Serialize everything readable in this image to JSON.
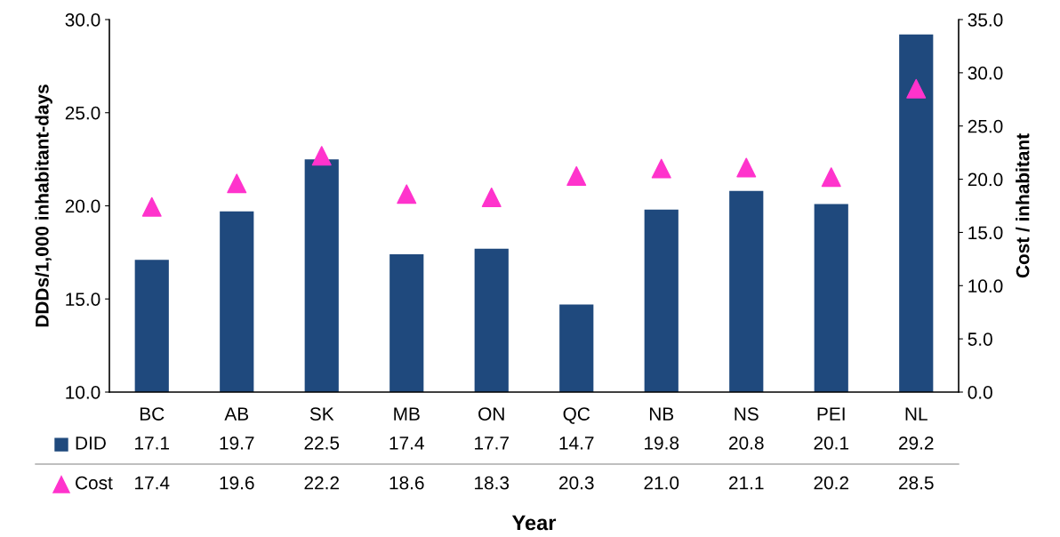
{
  "chart_data": {
    "type": "bar",
    "xlabel": "Year",
    "ylabel": "DDDs/1,000 inhabitant-days",
    "y2label": "Cost / inhabitant",
    "categories": [
      "BC",
      "AB",
      "SK",
      "MB",
      "ON",
      "QC",
      "NB",
      "NS",
      "PEI",
      "NL"
    ],
    "series": [
      {
        "name": "DID",
        "color": "#1f497d",
        "values": [
          17.1,
          19.7,
          22.5,
          17.4,
          17.7,
          14.7,
          19.8,
          20.8,
          20.1,
          29.2
        ]
      },
      {
        "name": "Cost",
        "type": "scatter",
        "axis": "y2",
        "marker": "triangle",
        "color": "#ff33cc",
        "values": [
          17.4,
          19.6,
          22.2,
          18.6,
          18.3,
          20.3,
          21.0,
          21.1,
          20.2,
          28.5
        ],
        "value_labels": [
          "17.4",
          "19.6",
          "22.2",
          "18.6",
          "18.3",
          "20.3",
          "21.0",
          "21.1",
          "20.2",
          "28.5"
        ]
      }
    ],
    "ylim": [
      10,
      30
    ],
    "yticks": [
      {
        "value": 10,
        "label": "10.0"
      },
      {
        "value": 15,
        "label": "15.0"
      },
      {
        "value": 20,
        "label": "20.0"
      },
      {
        "value": 25,
        "label": "25.0"
      },
      {
        "value": 30,
        "label": "30.0"
      }
    ],
    "y2lim": [
      0,
      35
    ],
    "y2ticks": [
      {
        "value": 0,
        "label": "0.0"
      },
      {
        "value": 5,
        "label": "5.0"
      },
      {
        "value": 10,
        "label": "10.0"
      },
      {
        "value": 15,
        "label": "15.0"
      },
      {
        "value": 20,
        "label": "20.0"
      },
      {
        "value": 25,
        "label": "25.0"
      },
      {
        "value": 30,
        "label": "30.0"
      },
      {
        "value": 35,
        "label": "35.0"
      }
    ],
    "data_labels": true,
    "grid": false,
    "legend": "bottom"
  }
}
